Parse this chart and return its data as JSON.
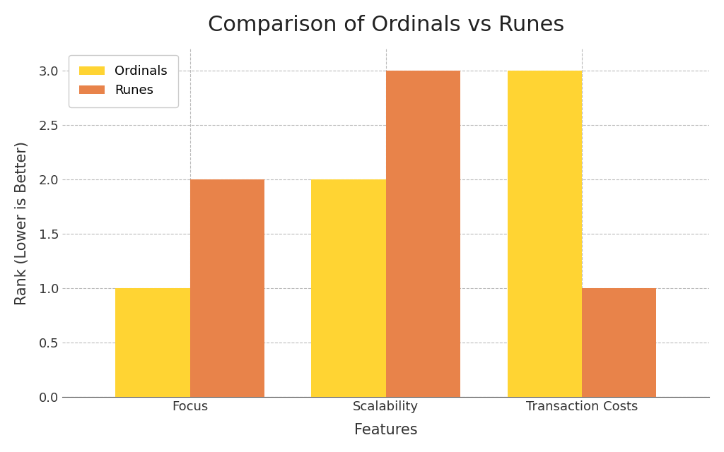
{
  "title": "Comparison of Ordinals vs Runes",
  "xlabel": "Features",
  "ylabel": "Rank (Lower is Better)",
  "categories": [
    "Focus",
    "Scalability",
    "Transaction Costs"
  ],
  "ordinals_values": [
    1,
    2,
    3
  ],
  "runes_values": [
    2,
    3,
    1
  ],
  "ordinals_color": "#FFD433",
  "runes_color": "#E8834A",
  "ylim": [
    0,
    3.2
  ],
  "yticks": [
    0.0,
    0.5,
    1.0,
    1.5,
    2.0,
    2.5,
    3.0
  ],
  "bar_width": 0.38,
  "title_fontsize": 22,
  "label_fontsize": 15,
  "tick_fontsize": 13,
  "legend_fontsize": 13,
  "background_color": "#ffffff",
  "grid_color": "#bbbbbb",
  "legend_labels": [
    "Ordinals",
    "Runes"
  ]
}
